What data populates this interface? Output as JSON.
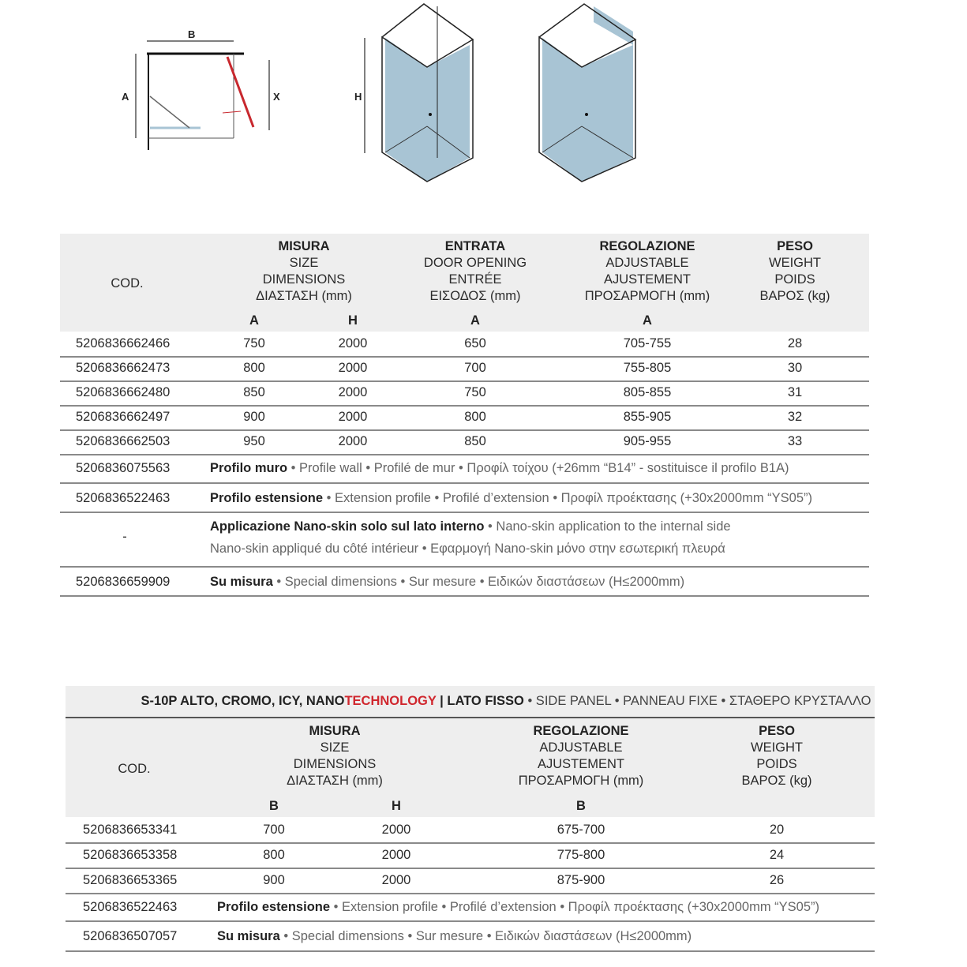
{
  "diagram": {
    "labels": {
      "b": "B",
      "a": "A",
      "x": "X",
      "h": "H"
    },
    "colors": {
      "glass": "#a8c4d4",
      "door": "#c8282e"
    }
  },
  "table1": {
    "headers": {
      "cod": "COD.",
      "misura": [
        "MISURA",
        "SIZE",
        "DIMENSIONS",
        "ΔΙΑΣΤΑΣΗ (mm)"
      ],
      "entrata": [
        "ENTRATA",
        "DOOR OPENING",
        "ENTRÉE",
        "ΕΙΣΟΔΟΣ (mm)"
      ],
      "regolazione": [
        "REGOLAZIONE",
        "ADJUSTABLE",
        "AJUSTEMENT",
        "ΠΡΟΣΑΡΜΟΓΗ (mm)"
      ],
      "peso": [
        "PESO",
        "WEIGHT",
        "POIDS",
        "ΒΑΡΟΣ (kg)"
      ],
      "sub": [
        "A",
        "H",
        "A",
        "A"
      ]
    },
    "rows": [
      [
        "5206836662466",
        "750",
        "2000",
        "650",
        "705-755",
        "28"
      ],
      [
        "5206836662473",
        "800",
        "2000",
        "700",
        "755-805",
        "30"
      ],
      [
        "5206836662480",
        "850",
        "2000",
        "750",
        "805-855",
        "31"
      ],
      [
        "5206836662497",
        "900",
        "2000",
        "800",
        "855-905",
        "32"
      ],
      [
        "5206836662503",
        "950",
        "2000",
        "850",
        "905-955",
        "33"
      ]
    ],
    "notes": [
      {
        "cod": "5206836075563",
        "bold": "Profilo muro",
        "rest": " • Profile wall • Profilé de mur • Προφίλ τοίχου (+26mm “B14” - sostituisce il profilo B1A)"
      },
      {
        "cod": "5206836522463",
        "bold": "Profilo estensione",
        "rest": " • Extension profile • Profilé d’extension • Προφίλ προέκτασης (+30x2000mm “YS05”)"
      },
      {
        "cod": "-",
        "bold": "Applicazione Nano-skin solo sul lato interno",
        "rest": " • Nano-skin application to the internal side",
        "line2": "Nano-skin appliqué du côté intérieur • Εφαρμογή Nano-skin μόνο στην εσωτερική πλευρά"
      },
      {
        "cod": "5206836659909",
        "bold": "Su misura",
        "rest": " • Special dimensions • Sur mesure • Ειδικών διαστάσεων (H≤2000mm)"
      }
    ]
  },
  "table2": {
    "title": {
      "part1": "S-10P ALTO, CROMO, ICY, NANO",
      "part2": "TECHNOLOGY",
      "part3": " | LATO FISSO",
      "part4": " • SIDE PANEL • PANNEAU FIXE • ΣΤΑΘΕΡΟ ΚΡΥΣΤΑΛΛΟ"
    },
    "headers": {
      "cod": "COD.",
      "misura": [
        "MISURA",
        "SIZE",
        "DIMENSIONS",
        "ΔΙΑΣΤΑΣΗ (mm)"
      ],
      "regolazione": [
        "REGOLAZIONE",
        "ADJUSTABLE",
        "AJUSTEMENT",
        "ΠΡΟΣΑΡΜΟΓΗ (mm)"
      ],
      "peso": [
        "PESO",
        "WEIGHT",
        "POIDS",
        "ΒΑΡΟΣ (kg)"
      ],
      "sub": [
        "B",
        "H",
        "B"
      ]
    },
    "rows": [
      [
        "5206836653341",
        "700",
        "2000",
        "675-700",
        "20"
      ],
      [
        "5206836653358",
        "800",
        "2000",
        "775-800",
        "24"
      ],
      [
        "5206836653365",
        "900",
        "2000",
        "875-900",
        "26"
      ]
    ],
    "notes": [
      {
        "cod": "5206836522463",
        "bold": "Profilo estensione",
        "rest": " • Extension profile • Profilé d’extension • Προφίλ προέκτασης (+30x2000mm “YS05”)"
      },
      {
        "cod": "5206836507057",
        "bold": "Su misura",
        "rest": " • Special dimensions • Sur mesure • Ειδικών διαστάσεων (H≤2000mm)"
      }
    ]
  }
}
